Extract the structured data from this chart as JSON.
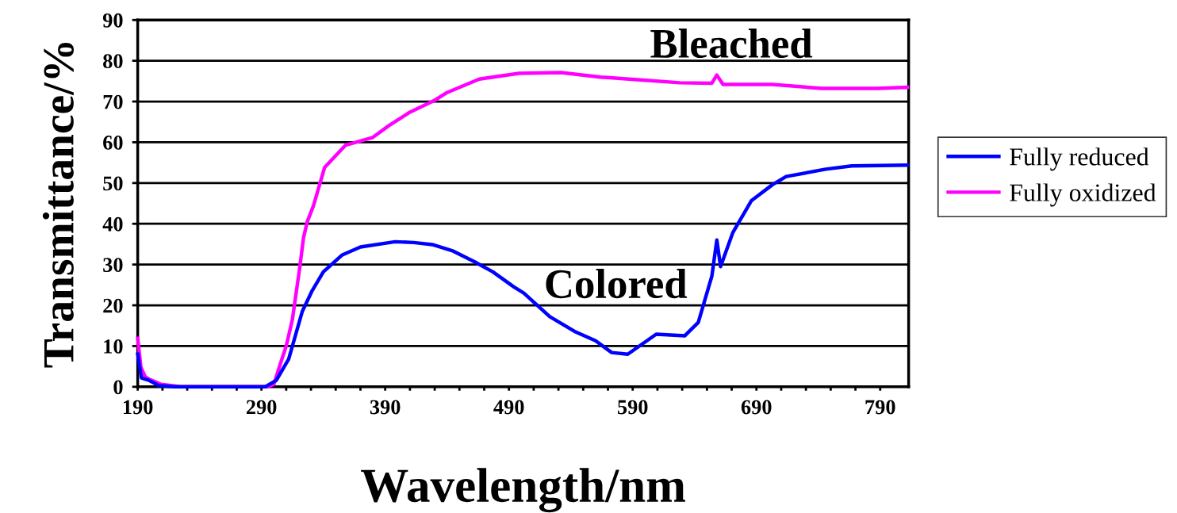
{
  "chart_data": {
    "type": "line",
    "xlabel": "Wavelength/nm",
    "ylabel": "Transmittance/%",
    "xlim": [
      190,
      813
    ],
    "ylim": [
      0,
      90
    ],
    "xticks": [
      190,
      {
        "value": 210,
        "label": null
      },
      {
        "value": 230,
        "label": null
      },
      {
        "value": 250,
        "label": null
      },
      {
        "value": 270,
        "label": null
      },
      290,
      {
        "value": 310,
        "label": null
      },
      {
        "value": 330,
        "label": null
      },
      {
        "value": 350,
        "label": null
      },
      {
        "value": 370,
        "label": null
      },
      390,
      {
        "value": 410,
        "label": null
      },
      {
        "value": 430,
        "label": null
      },
      {
        "value": 450,
        "label": null
      },
      {
        "value": 470,
        "label": null
      },
      490,
      {
        "value": 510,
        "label": null
      },
      {
        "value": 530,
        "label": null
      },
      {
        "value": 550,
        "label": null
      },
      {
        "value": 570,
        "label": null
      },
      590,
      {
        "value": 610,
        "label": null
      },
      {
        "value": 630,
        "label": null
      },
      {
        "value": 650,
        "label": null
      },
      {
        "value": 670,
        "label": null
      },
      690,
      {
        "value": 710,
        "label": null
      },
      {
        "value": 730,
        "label": null
      },
      {
        "value": 750,
        "label": null
      },
      {
        "value": 770,
        "label": null
      },
      790
    ],
    "yticks": [
      0,
      10,
      20,
      30,
      40,
      50,
      60,
      70,
      80,
      90
    ],
    "grid": "y",
    "legend": "right",
    "marker": "none",
    "line_style": "solid",
    "annotations": [
      "Bleached",
      "Colored"
    ],
    "series": [
      {
        "name": "Fully reduced",
        "color": "#0000ff",
        "x": [
          190,
          193,
          199,
          207,
          220,
          293,
          302,
          312,
          323,
          331,
          340,
          355,
          370,
          398,
          413,
          428,
          445,
          462,
          477,
          494,
          502,
          523,
          543,
          560,
          573,
          586,
          609,
          632,
          643,
          654,
          658,
          661,
          671,
          686,
          703,
          714,
          746,
          767,
          812
        ],
        "values": [
          8.0,
          2.2,
          1.6,
          0.3,
          0,
          0,
          1.6,
          6.8,
          18.5,
          23.6,
          28.2,
          32.3,
          34.3,
          35.6,
          35.4,
          34.9,
          33.3,
          30.7,
          28.2,
          24.5,
          23.0,
          17.2,
          13.6,
          11.3,
          8.4,
          8.0,
          12.9,
          12.5,
          15.8,
          27.2,
          36.0,
          29.5,
          37.9,
          45.7,
          49.6,
          51.6,
          53.4,
          54.2,
          54.4
        ]
      },
      {
        "name": "Fully oxidized",
        "color": "#ff00ff",
        "x": [
          190,
          192.6,
          196,
          199,
          209,
          226,
          295,
          300,
          305,
          310,
          315,
          321,
          324,
          327,
          332,
          341,
          358,
          380,
          393,
          410,
          430,
          440,
          466,
          498,
          532,
          564,
          596,
          628,
          654,
          658,
          663,
          703,
          743,
          788,
          812
        ],
        "values": [
          11.9,
          4.8,
          2.5,
          1.9,
          0.6,
          0,
          0,
          0.6,
          5.4,
          10,
          16.5,
          29.4,
          36.6,
          40.5,
          44.4,
          53.8,
          59.3,
          61.2,
          64.1,
          67.4,
          70.3,
          72.2,
          75.5,
          76.9,
          77.1,
          76,
          75.3,
          74.6,
          74.5,
          76.5,
          74.2,
          74.2,
          73.2,
          73.2,
          73.5
        ]
      }
    ]
  }
}
